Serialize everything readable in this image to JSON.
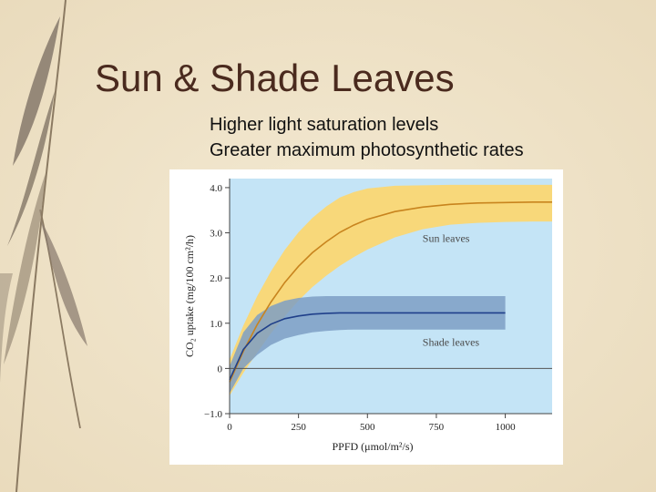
{
  "slide": {
    "title": "Sun & Shade Leaves",
    "bullets": [
      "Higher light saturation levels",
      "Greater maximum photosynthetic rates"
    ]
  },
  "chart_data": {
    "type": "line",
    "ylabel": "CO₂ uptake (mg/100 cm²/h)",
    "xlabel": "PPFD (μmol/m²/s)",
    "xlim": [
      0,
      1170
    ],
    "ylim": [
      -1.0,
      4.2
    ],
    "xticks": [
      0,
      250,
      500,
      750,
      1000
    ],
    "xtick_labels": [
      "0",
      "250",
      "500",
      "750",
      "1000"
    ],
    "yticks": [
      -1.0,
      0,
      1.0,
      2.0,
      3.0,
      4.0
    ],
    "ytick_labels": [
      "−1.0",
      "0",
      "1.0",
      "2.0",
      "3.0",
      "4.0"
    ],
    "grid": false,
    "background_color": "#c4e4f6",
    "series": [
      {
        "name": "Sun leaves",
        "line_color": "#c8841e",
        "band_color": "#f8d87a",
        "x": [
          0,
          50,
          100,
          150,
          200,
          250,
          300,
          350,
          400,
          450,
          500,
          600,
          700,
          800,
          900,
          1000,
          1100,
          1170
        ],
        "y": [
          -0.3,
          0.38,
          0.97,
          1.47,
          1.9,
          2.26,
          2.56,
          2.8,
          3.01,
          3.17,
          3.3,
          3.47,
          3.57,
          3.63,
          3.66,
          3.67,
          3.68,
          3.68
        ],
        "band_upper": [
          0.2,
          0.95,
          1.6,
          2.15,
          2.62,
          3.01,
          3.33,
          3.58,
          3.78,
          3.9,
          3.98,
          4.04,
          4.05,
          4.06,
          4.06,
          4.06,
          4.06,
          4.06
        ],
        "band_lower": [
          -0.6,
          -0.1,
          0.35,
          0.78,
          1.15,
          1.5,
          1.8,
          2.05,
          2.27,
          2.46,
          2.63,
          2.9,
          3.08,
          3.18,
          3.22,
          3.24,
          3.25,
          3.25
        ]
      },
      {
        "name": "Shade leaves",
        "line_color": "#1f3f8a",
        "band_color": "#7e9fc4",
        "x": [
          0,
          50,
          100,
          150,
          200,
          250,
          300,
          350,
          400,
          450,
          500,
          600,
          700,
          800,
          900,
          1000
        ],
        "y": [
          -0.25,
          0.42,
          0.78,
          0.98,
          1.1,
          1.16,
          1.2,
          1.22,
          1.23,
          1.23,
          1.23,
          1.23,
          1.23,
          1.23,
          1.23,
          1.23
        ],
        "band_upper": [
          0.05,
          0.8,
          1.18,
          1.38,
          1.5,
          1.56,
          1.59,
          1.6,
          1.6,
          1.6,
          1.6,
          1.6,
          1.6,
          1.6,
          1.6,
          1.6
        ],
        "band_lower": [
          -0.55,
          0.0,
          0.3,
          0.52,
          0.66,
          0.74,
          0.8,
          0.83,
          0.85,
          0.86,
          0.86,
          0.86,
          0.86,
          0.86,
          0.86,
          0.86
        ]
      }
    ],
    "overlap_color": "#9cb860",
    "zero_line": true
  }
}
